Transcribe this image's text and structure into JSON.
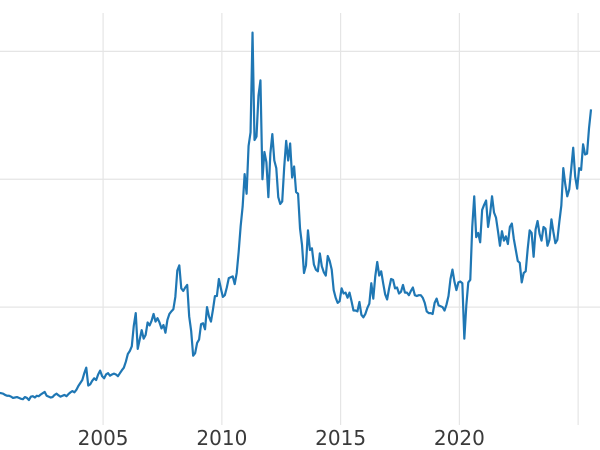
{
  "colors": {
    "line": "#1f77b4",
    "gridline": "#e5e5e5",
    "tick_label": "#3a3a3a",
    "background": "#ffffff"
  },
  "chart_data": {
    "type": "line",
    "title": "",
    "xlabel": "",
    "ylabel": "",
    "legend": "none",
    "grid": true,
    "x_axis": {
      "range": [
        2000.66,
        2025.92
      ],
      "ticks": [
        2005,
        2010,
        2015,
        2020,
        2025
      ],
      "tick_labels": [
        "2005",
        "2010",
        "2015",
        "2020"
      ]
    },
    "y_axis": {
      "range": [
        0,
        49.5
      ],
      "gridlines": [
        15,
        30,
        45
      ],
      "labels_visible": false
    },
    "series": [
      {
        "name": "",
        "frequency": "monthly",
        "start_year": 2000,
        "start_month": 8,
        "values": [
          4.95,
          4.9,
          4.85,
          4.7,
          4.6,
          4.6,
          4.5,
          4.35,
          4.4,
          4.45,
          4.35,
          4.25,
          4.2,
          4.45,
          4.35,
          4.1,
          4.5,
          4.55,
          4.4,
          4.6,
          4.55,
          4.75,
          4.9,
          5.05,
          4.6,
          4.5,
          4.4,
          4.45,
          4.7,
          4.85,
          4.65,
          4.5,
          4.6,
          4.7,
          4.55,
          4.8,
          5.0,
          5.15,
          5.0,
          5.3,
          5.75,
          6.1,
          6.45,
          7.25,
          7.9,
          5.8,
          5.95,
          6.35,
          6.65,
          6.45,
          7.1,
          7.55,
          6.9,
          6.65,
          7.1,
          7.25,
          6.95,
          7.1,
          7.2,
          7.1,
          6.9,
          7.25,
          7.6,
          7.9,
          8.6,
          9.5,
          9.85,
          10.4,
          12.8,
          14.3,
          10.1,
          11.2,
          12.3,
          11.3,
          11.75,
          13.2,
          12.85,
          13.4,
          14.2,
          13.3,
          13.7,
          13.2,
          12.5,
          12.9,
          12.0,
          13.5,
          14.2,
          14.5,
          14.75,
          16.2,
          19.3,
          19.9,
          17.2,
          16.9,
          17.3,
          17.6,
          13.9,
          12.2,
          9.3,
          9.6,
          10.8,
          11.2,
          13.0,
          13.1,
          12.4,
          15.0,
          13.9,
          13.3,
          14.7,
          16.3,
          16.3,
          18.3,
          17.2,
          16.2,
          16.4,
          17.3,
          18.4,
          18.5,
          18.6,
          17.7,
          19.0,
          21.5,
          24.5,
          26.8,
          30.6,
          28.3,
          33.9,
          35.5,
          47.2,
          34.6,
          35.0,
          39.8,
          41.6,
          30.0,
          33.2,
          32.0,
          27.9,
          33.0,
          35.3,
          32.2,
          31.3,
          27.9,
          27.1,
          27.4,
          31.4,
          34.5,
          32.2,
          34.2,
          30.2,
          31.5,
          28.5,
          28.3,
          24.2,
          22.3,
          19.0,
          19.9,
          24.0,
          21.7,
          21.9,
          20.0,
          19.4,
          19.2,
          21.3,
          19.8,
          19.1,
          18.7,
          21.0,
          20.4,
          19.4,
          17.0,
          16.1,
          15.5,
          15.7,
          17.2,
          16.6,
          16.7,
          16.1,
          16.7,
          15.7,
          14.6,
          14.6,
          14.5,
          15.6,
          14.1,
          13.8,
          14.2,
          14.9,
          15.4,
          17.8,
          16.0,
          18.6,
          20.3,
          18.7,
          19.2,
          17.8,
          16.5,
          15.9,
          17.2,
          18.3,
          18.2,
          17.2,
          17.3,
          16.6,
          16.8,
          17.6,
          16.7,
          16.7,
          16.4,
          16.9,
          17.3,
          16.4,
          16.3,
          16.4,
          16.4,
          16.1,
          15.5,
          14.5,
          14.3,
          14.3,
          14.2,
          15.5,
          16.0,
          15.2,
          15.1,
          15.0,
          14.6,
          15.3,
          16.3,
          18.3,
          19.4,
          18.0,
          17.0,
          17.9,
          18.0,
          17.8,
          11.3,
          15.2,
          17.9,
          18.2,
          24.4,
          28.0,
          23.2,
          23.7,
          22.6,
          26.4,
          27.0,
          27.5,
          24.4,
          25.9,
          28.0,
          26.1,
          25.5,
          23.9,
          22.2,
          23.9,
          22.8,
          23.3,
          22.4,
          24.4,
          24.8,
          23.0,
          21.7,
          20.4,
          20.2,
          17.9,
          19.0,
          19.2,
          21.8,
          24.0,
          23.7,
          20.9,
          24.1,
          25.1,
          23.6,
          22.8,
          24.4,
          24.2,
          22.2,
          22.9,
          25.3,
          23.8,
          22.5,
          22.9,
          25.0,
          26.9,
          31.3,
          29.4,
          28.0,
          28.8,
          31.2,
          33.7,
          30.3,
          28.9,
          31.3,
          31.1,
          34.1,
          32.9,
          33.0,
          36.0,
          38.2
        ]
      }
    ]
  }
}
